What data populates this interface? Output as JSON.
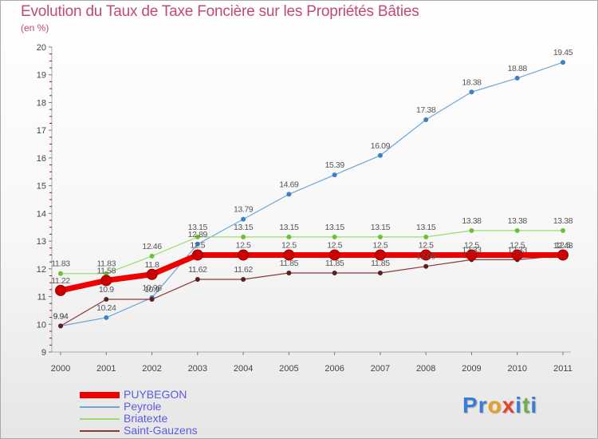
{
  "header": {
    "title": "Evolution du Taux de Taxe Foncière sur les Propriétés Bâties",
    "unit": "(en %)"
  },
  "logo": {
    "text": "Proxiti",
    "letters": [
      "P",
      "r",
      "o",
      "x",
      "i",
      "t",
      "i"
    ],
    "letter_colors": [
      "#3a7bd5",
      "#3a7bd5",
      "#e8a020",
      "#e8402a",
      "#3a7bd5",
      "#6ab04c",
      "#3a7bd5"
    ]
  },
  "colors": {
    "title": "#c0487a",
    "axis": "#999999",
    "tick_red": "#cc0000",
    "legend_text": "#5a5ae0"
  },
  "chart_data": {
    "type": "line",
    "title": "Evolution du Taux de Taxe Foncière sur les Propriétés Bâties",
    "ylabel": "(en %)",
    "xlabel": "",
    "x": [
      "2000",
      "2001",
      "2002",
      "2003",
      "2004",
      "2005",
      "2006",
      "2007",
      "2008",
      "2009",
      "2010",
      "2011"
    ],
    "ylim": [
      9,
      20
    ],
    "yticks": [
      9,
      10,
      11,
      12,
      13,
      14,
      15,
      16,
      17,
      18,
      19,
      20
    ],
    "legend_position": "bottom-left",
    "series": [
      {
        "name": "PUYBEGON",
        "color": "#ee0000",
        "dot": "#cc0000",
        "width": 7,
        "values": [
          11.22,
          11.58,
          11.8,
          12.5,
          12.5,
          12.5,
          12.5,
          12.5,
          12.5,
          12.5,
          12.5,
          12.5
        ],
        "labels": [
          "11.22",
          "11.58",
          "11.8",
          "12.5",
          "12.5",
          "12.5",
          "12.5",
          "12.5",
          "12.5",
          "12.5",
          "12.5",
          "12.5"
        ]
      },
      {
        "name": "Peyrole",
        "color": "#6ea6d8",
        "dot": "#3d7fc1",
        "width": 1.2,
        "values": [
          9.94,
          10.24,
          10.96,
          12.89,
          13.79,
          14.69,
          15.39,
          16.09,
          17.38,
          18.38,
          18.88,
          19.45
        ],
        "labels": [
          "9.94",
          "10.24",
          "10.96",
          "12.89",
          "13.79",
          "14.69",
          "15.39",
          "16.09",
          "17.38",
          "18.38",
          "18.88",
          "19.45"
        ]
      },
      {
        "name": "Briatexte",
        "color": "#9bdc6e",
        "dot": "#6bbf3a",
        "width": 1.2,
        "values": [
          11.83,
          11.83,
          12.46,
          13.15,
          13.15,
          13.15,
          13.15,
          13.15,
          13.15,
          13.38,
          13.38,
          13.38
        ],
        "labels": [
          "11.83",
          "11.83",
          "12.46",
          "13.15",
          "13.15",
          "13.15",
          "13.15",
          "13.15",
          "13.15",
          "13.38",
          "13.38",
          "13.38"
        ]
      },
      {
        "name": "Saint-Gauzens",
        "color": "#8b3a3a",
        "dot": "#5a1f1f",
        "width": 1.2,
        "values": [
          9.94,
          10.9,
          10.9,
          11.62,
          11.62,
          11.85,
          11.85,
          11.85,
          12.09,
          12.33,
          12.33,
          12.48
        ],
        "labels": [
          "9.94",
          "10.9",
          "10.9",
          "11.62",
          "11.62",
          "11.85",
          "11.85",
          "11.85",
          "12.09",
          "12.33",
          "12.33",
          "12.48"
        ]
      }
    ]
  }
}
